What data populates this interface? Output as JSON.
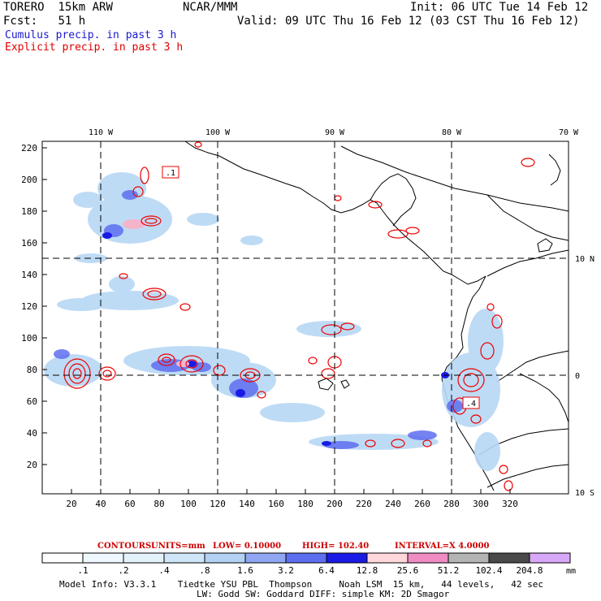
{
  "header": {
    "model": "TORERO",
    "resolution": "15km ARW",
    "org": "NCAR/MMM",
    "init": "Init: 06 UTC Tue 14 Feb 12",
    "fcst_label": "Fcst:",
    "fcst_value": "51 h",
    "valid": "Valid: 09 UTC Thu 16 Feb 12 (03 CST Thu 16 Feb 12)",
    "cumulus": "Cumulus precip. in past 3 h",
    "explicit": "Explicit precip. in past 3 h"
  },
  "map": {
    "lon_labels": [
      "110 W",
      "100 W",
      "90 W",
      "80 W",
      "70 W"
    ],
    "lat_labels": [
      "10 N",
      "0",
      "10 S"
    ],
    "y_ticks": [
      "220",
      "200",
      "180",
      "160",
      "140",
      "120",
      "100",
      "80",
      "60",
      "40",
      "20"
    ],
    "x_ticks": [
      "20",
      "40",
      "60",
      "80",
      "100",
      "120",
      "140",
      "160",
      "180",
      "200",
      "220",
      "240",
      "260",
      "280",
      "300",
      "320"
    ],
    "contour_labels": [
      ".1",
      ".4"
    ],
    "colors": {
      "cumulus": "#3340e6",
      "explicit": "#ee0000",
      "light": "#b8d8f5"
    }
  },
  "legend": {
    "contours": "CONTOURS:",
    "units": "UNITS=mm",
    "low": "LOW= 0.10000",
    "high": "HIGH= 102.40",
    "interval": "INTERVAL=X 4.0000",
    "unit": "mm",
    "ticks": [
      ".1",
      ".2",
      ".4",
      ".8",
      "1.6",
      "3.2",
      "6.4",
      "12.8",
      "25.6",
      "51.2",
      "102.4",
      "204.8"
    ],
    "colors": [
      "#ffffff",
      "#f0f8ff",
      "#e4f2fb",
      "#cfe6f8",
      "#b3d2f3",
      "#8fa6f2",
      "#5e6ef0",
      "#1a1ae6",
      "#ffd8dc",
      "#f08cc4",
      "#b4b4b4",
      "#4a4a4a",
      "#d8a8f8"
    ]
  },
  "footer": {
    "line1": "Model Info: V3.3.1    Tiedtke YSU PBL  Thompson     Noah LSM  15 km,   44 levels,   42 sec",
    "line2": "LW: Godd SW: Goddard DIFF: simple KM: 2D Smagor"
  }
}
